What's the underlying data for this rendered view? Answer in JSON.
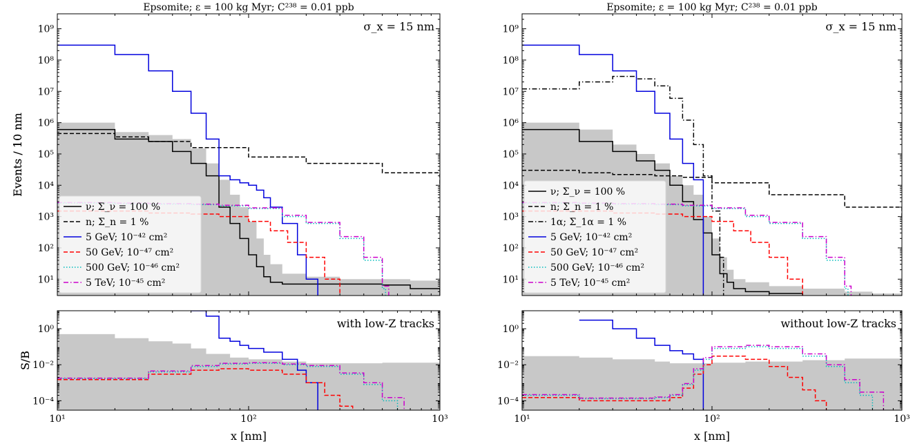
{
  "chart_data": [
    {
      "type": "line",
      "title": "Epsomite; ε = 100 kg Myr; C²³⁸ = 0.01 ppb",
      "annotation": "σ_x = 15 nm",
      "xlabel": "",
      "ylabel": "Events / 10 nm",
      "xscale": "log",
      "yscale": "log",
      "xlim": [
        10,
        1000
      ],
      "ylim": [
        3,
        3000000000
      ],
      "x_ticks": [
        "10¹",
        "10²",
        "10³"
      ],
      "y_ticks": [
        "10¹",
        "10²",
        "10³",
        "10⁴",
        "10⁵",
        "10⁶",
        "10⁷",
        "10⁸",
        "10⁹"
      ],
      "legend_position": "center-left",
      "band": {
        "x": [
          10,
          20,
          30,
          40,
          50,
          60,
          70,
          80,
          90,
          100,
          110,
          120,
          130,
          150,
          200,
          300,
          500,
          700,
          1000
        ],
        "y": [
          1000000,
          500000,
          400000,
          300000,
          150000,
          50000,
          15000,
          5000,
          2000,
          700,
          200,
          60,
          30,
          15,
          12,
          10,
          10,
          9,
          7
        ]
      },
      "series": [
        {
          "name": "ν; Σ_ν = 100 %",
          "color": "#000000",
          "dash": "solid",
          "x": [
            10,
            20,
            30,
            40,
            50,
            60,
            70,
            80,
            90,
            100,
            110,
            120,
            130,
            150,
            200,
            300,
            500,
            700,
            1000
          ],
          "y": [
            600000,
            300000,
            250000,
            120000,
            50000,
            20000,
            2000,
            600,
            200,
            60,
            25,
            12,
            8,
            7,
            7,
            7,
            6.5,
            5,
            3
          ]
        },
        {
          "name": "n; Σ_n = 1 %",
          "color": "#000000",
          "dash": "dashed",
          "x": [
            10,
            20,
            30,
            50,
            100,
            200,
            500,
            1000
          ],
          "y": [
            450000,
            350000,
            250000,
            160000,
            80000,
            50000,
            25000,
            10000
          ]
        },
        {
          "name": "5 GeV; 10⁻⁴² cm²",
          "color": "#0000dd",
          "dash": "solid",
          "x": [
            10,
            20,
            30,
            40,
            50,
            60,
            70,
            80,
            90,
            100,
            110,
            120,
            130,
            150,
            180,
            200,
            230
          ],
          "y": [
            300000000,
            150000000,
            45000000,
            10000000,
            2000000,
            300000,
            20000,
            15000,
            12000,
            10000,
            7000,
            4000,
            2000,
            600,
            60,
            10,
            3
          ]
        },
        {
          "name": "50 GeV; 10⁻⁴⁷ cm²",
          "color": "#ff0000",
          "dash": "dashed",
          "x": [
            10,
            20,
            30,
            50,
            70,
            100,
            130,
            160,
            200,
            250,
            300
          ],
          "y": [
            1500,
            1500,
            1300,
            1200,
            1000,
            700,
            350,
            150,
            50,
            10,
            3
          ]
        },
        {
          "name": "500 GeV; 10⁻⁴⁶ cm²",
          "color": "#00bbbb",
          "dash": "dotted",
          "x": [
            10,
            20,
            30,
            50,
            70,
            100,
            150,
            200,
            300,
            400,
            500,
            520
          ],
          "y": [
            2700,
            2600,
            2500,
            2400,
            2200,
            1800,
            1000,
            600,
            200,
            40,
            5,
            3
          ]
        },
        {
          "name": "5 TeV; 10⁻⁴⁵ cm²",
          "color": "#cc00cc",
          "dash": "dashdot",
          "x": [
            10,
            20,
            30,
            50,
            70,
            100,
            150,
            200,
            300,
            400,
            500,
            540
          ],
          "y": [
            2800,
            2700,
            2600,
            2500,
            2300,
            1900,
            1100,
            650,
            230,
            50,
            6,
            3
          ]
        }
      ]
    },
    {
      "type": "line",
      "title": "Epsomite; ε = 100 kg Myr; C²³⁸ = 0.01 ppb",
      "annotation": "σ_x = 15 nm",
      "xlabel": "",
      "ylabel": "Events / 10 nm",
      "xscale": "log",
      "yscale": "log",
      "xlim": [
        10,
        1000
      ],
      "ylim": [
        3,
        3000000000
      ],
      "x_ticks": [
        "10¹",
        "10²",
        "10³"
      ],
      "y_ticks": [
        "10¹",
        "10²",
        "10³",
        "10⁴",
        "10⁵",
        "10⁶",
        "10⁷",
        "10⁸",
        "10⁹"
      ],
      "legend_position": "center-left",
      "band": {
        "x": [
          10,
          20,
          30,
          40,
          50,
          60,
          70,
          80,
          90,
          100,
          110,
          120,
          130,
          150,
          200,
          300,
          500,
          700,
          1000
        ],
        "y": [
          1000000,
          600000,
          200000,
          100000,
          50000,
          20000,
          10000,
          5000,
          1000,
          200,
          50,
          20,
          10,
          8,
          6,
          5,
          4,
          3.5,
          3
        ]
      },
      "series": [
        {
          "name": "ν; Σ_ν = 100 %",
          "color": "#000000",
          "dash": "solid",
          "x": [
            10,
            20,
            30,
            40,
            50,
            60,
            70,
            80,
            90,
            100,
            110,
            120,
            130,
            150,
            200,
            300
          ],
          "y": [
            600000,
            250000,
            120000,
            60000,
            30000,
            10000,
            3000,
            800,
            300,
            60,
            15,
            8,
            5,
            4,
            3.5,
            3
          ]
        },
        {
          "name": "n; Σ_n = 1 %",
          "color": "#000000",
          "dash": "dashed",
          "x": [
            10,
            20,
            30,
            50,
            70,
            100,
            200,
            500,
            1000
          ],
          "y": [
            30000,
            25000,
            22000,
            20000,
            18000,
            12000,
            5000,
            2000,
            800
          ]
        },
        {
          "name": "1α; Σ_1α = 1 %",
          "color": "#000000",
          "dash": "dashdot",
          "x": [
            10,
            20,
            30,
            40,
            50,
            60,
            70,
            80,
            90,
            100,
            110,
            115
          ],
          "y": [
            12000000,
            20000000,
            30000000,
            25000000,
            15000000,
            6000000,
            1200000,
            200000,
            20000,
            1500,
            50,
            3
          ]
        },
        {
          "name": "5 GeV; 10⁻⁴² cm²",
          "color": "#0000dd",
          "dash": "solid",
          "x": [
            10,
            20,
            30,
            40,
            50,
            60,
            70,
            80,
            90
          ],
          "y": [
            300000000,
            150000000,
            45000000,
            10000000,
            2000000,
            300000,
            50000,
            15000,
            3
          ]
        },
        {
          "name": "50 GeV; 10⁻⁴⁷ cm²",
          "color": "#ff0000",
          "dash": "dashed",
          "x": [
            10,
            20,
            30,
            50,
            70,
            100,
            130,
            160,
            200,
            250,
            300
          ],
          "y": [
            1500,
            1500,
            1300,
            1200,
            1000,
            700,
            350,
            150,
            50,
            10,
            3
          ]
        },
        {
          "name": "500 GeV; 10⁻⁴⁶ cm²",
          "color": "#00bbbb",
          "dash": "dotted",
          "x": [
            10,
            20,
            30,
            50,
            70,
            100,
            150,
            200,
            300,
            400,
            500,
            520
          ],
          "y": [
            2700,
            2600,
            2500,
            2400,
            2200,
            1800,
            1000,
            600,
            200,
            40,
            5,
            3
          ]
        },
        {
          "name": "5 TeV; 10⁻⁴⁵ cm²",
          "color": "#cc00cc",
          "dash": "dashdot",
          "x": [
            10,
            20,
            30,
            50,
            70,
            100,
            150,
            200,
            300,
            400,
            500,
            540
          ],
          "y": [
            2800,
            2700,
            2600,
            2500,
            2300,
            1900,
            1100,
            650,
            230,
            50,
            6,
            3
          ]
        }
      ]
    },
    {
      "type": "line",
      "annotation": "with low-Z tracks",
      "xlabel": "x [nm]",
      "ylabel": "S/B",
      "xscale": "log",
      "yscale": "log",
      "xlim": [
        10,
        1000
      ],
      "ylim": [
        3e-05,
        10
      ],
      "x_ticks": [
        "10¹",
        "10²",
        "10³"
      ],
      "y_ticks": [
        "10⁻⁴",
        "10⁻²",
        "10⁰"
      ],
      "band": {
        "x": [
          10,
          20,
          30,
          40,
          50,
          60,
          80,
          100,
          150,
          200,
          300,
          500,
          1000
        ],
        "y": [
          0.5,
          0.3,
          0.2,
          0.15,
          0.08,
          0.04,
          0.025,
          0.02,
          0.015,
          0.012,
          0.012,
          0.013,
          0.015
        ]
      },
      "series": [
        {
          "name": "5 GeV; 10⁻⁴² cm²",
          "color": "#0000dd",
          "dash": "solid",
          "x": [
            50,
            60,
            70,
            80,
            90,
            100,
            120,
            150,
            180,
            200,
            230
          ],
          "y": [
            10,
            5,
            0.3,
            0.2,
            0.12,
            0.08,
            0.05,
            0.02,
            0.005,
            0.001,
            3e-05
          ]
        },
        {
          "name": "50 GeV; 10⁻⁴⁷ cm²",
          "color": "#ff0000",
          "dash": "dashed",
          "x": [
            10,
            20,
            30,
            50,
            70,
            100,
            150,
            200,
            250,
            300,
            350
          ],
          "y": [
            0.0015,
            0.0015,
            0.003,
            0.005,
            0.006,
            0.005,
            0.003,
            0.001,
            0.0002,
            5e-05,
            3e-05
          ]
        },
        {
          "name": "500 GeV; 10⁻⁴⁶ cm²",
          "color": "#00bbbb",
          "dash": "dotted",
          "x": [
            10,
            20,
            30,
            50,
            70,
            100,
            150,
            200,
            300,
            400,
            500,
            600
          ],
          "y": [
            0.0017,
            0.0017,
            0.004,
            0.008,
            0.011,
            0.012,
            0.01,
            0.008,
            0.003,
            0.0008,
            0.0001,
            3e-05
          ]
        },
        {
          "name": "5 TeV; 10⁻⁴⁵ cm²",
          "color": "#cc00cc",
          "dash": "dashdot",
          "x": [
            10,
            20,
            30,
            50,
            70,
            100,
            150,
            200,
            300,
            400,
            500,
            650
          ],
          "y": [
            0.0018,
            0.0018,
            0.0045,
            0.009,
            0.012,
            0.013,
            0.011,
            0.009,
            0.0035,
            0.001,
            0.00015,
            3e-05
          ]
        }
      ]
    },
    {
      "type": "line",
      "annotation": "without low-Z tracks",
      "xlabel": "x [nm]",
      "ylabel": "S/B",
      "xscale": "log",
      "yscale": "log",
      "xlim": [
        10,
        1000
      ],
      "ylim": [
        3e-05,
        10
      ],
      "x_ticks": [
        "10¹",
        "10²",
        "10³"
      ],
      "y_ticks": [
        "10⁻⁴",
        "10⁻²",
        "10⁰"
      ],
      "band": {
        "x": [
          10,
          20,
          30,
          40,
          50,
          60,
          80,
          100,
          150,
          200,
          300,
          500,
          1000
        ],
        "y": [
          0.03,
          0.025,
          0.02,
          0.02,
          0.015,
          0.012,
          0.012,
          0.013,
          0.015,
          0.015,
          0.018,
          0.022,
          0.03
        ]
      },
      "series": [
        {
          "name": "5 GeV; 10⁻⁴² cm²",
          "color": "#0000dd",
          "dash": "solid",
          "x": [
            20,
            30,
            40,
            50,
            60,
            70,
            80,
            90
          ],
          "y": [
            3,
            1,
            0.3,
            0.12,
            0.06,
            0.04,
            0.02,
            3e-05
          ]
        },
        {
          "name": "50 GeV; 10⁻⁴⁷ cm²",
          "color": "#ff0000",
          "dash": "dashed",
          "x": [
            10,
            20,
            30,
            50,
            60,
            70,
            80,
            90,
            100,
            150,
            200,
            250,
            300,
            350,
            400
          ],
          "y": [
            0.00015,
            0.0001,
            0.0001,
            0.0001,
            0.00015,
            0.0005,
            0.003,
            0.01,
            0.03,
            0.02,
            0.008,
            0.002,
            0.0004,
            0.0001,
            3e-05
          ]
        },
        {
          "name": "500 GeV; 10⁻⁴⁶ cm²",
          "color": "#00bbbb",
          "dash": "dotted",
          "x": [
            10,
            20,
            30,
            50,
            60,
            70,
            80,
            90,
            100,
            150,
            200,
            300,
            400,
            500,
            600,
            700
          ],
          "y": [
            0.0002,
            0.00013,
            0.00013,
            0.00015,
            0.0002,
            0.0008,
            0.005,
            0.02,
            0.08,
            0.1,
            0.08,
            0.03,
            0.008,
            0.001,
            0.0002,
            3e-05
          ]
        },
        {
          "name": "5 TeV; 10⁻⁴⁵ cm²",
          "color": "#cc00cc",
          "dash": "dashdot",
          "x": [
            10,
            20,
            30,
            50,
            60,
            70,
            80,
            90,
            100,
            150,
            200,
            300,
            400,
            500,
            600,
            800
          ],
          "y": [
            0.00022,
            0.00014,
            0.00014,
            0.00016,
            0.00022,
            0.0009,
            0.006,
            0.025,
            0.1,
            0.12,
            0.1,
            0.04,
            0.01,
            0.0015,
            0.0003,
            3e-05
          ]
        }
      ]
    }
  ]
}
